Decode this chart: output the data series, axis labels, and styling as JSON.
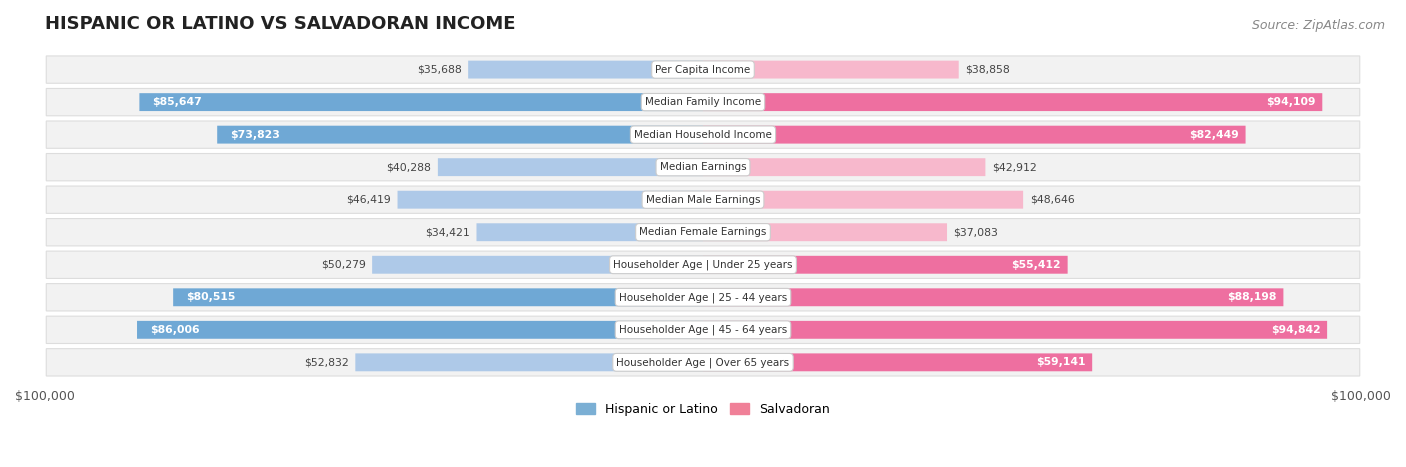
{
  "title": "HISPANIC OR LATINO VS SALVADORAN INCOME",
  "source": "Source: ZipAtlas.com",
  "categories": [
    "Per Capita Income",
    "Median Family Income",
    "Median Household Income",
    "Median Earnings",
    "Median Male Earnings",
    "Median Female Earnings",
    "Householder Age | Under 25 years",
    "Householder Age | 25 - 44 years",
    "Householder Age | 45 - 64 years",
    "Householder Age | Over 65 years"
  ],
  "hispanic_values": [
    35688,
    85647,
    73823,
    40288,
    46419,
    34421,
    50279,
    80515,
    86006,
    52832
  ],
  "salvadoran_values": [
    38858,
    94109,
    82449,
    42912,
    48646,
    37083,
    55412,
    88198,
    94842,
    59141
  ],
  "hispanic_labels": [
    "$35,688",
    "$85,647",
    "$73,823",
    "$40,288",
    "$46,419",
    "$34,421",
    "$50,279",
    "$80,515",
    "$86,006",
    "$52,832"
  ],
  "salvadoran_labels": [
    "$38,858",
    "$94,109",
    "$82,449",
    "$42,912",
    "$48,646",
    "$37,083",
    "$55,412",
    "$88,198",
    "$94,842",
    "$59,141"
  ],
  "max_value": 100000,
  "hispanic_color_light": "#aec9e8",
  "hispanic_color_dark": "#6fa8d5",
  "salvadoran_color_light": "#f7b8cc",
  "salvadoran_color_dark": "#ee6fa0",
  "row_bg_color": "#f2f2f2",
  "row_border_color": "#dddddd",
  "label_color_inside": "#ffffff",
  "label_color_outside": "#444444",
  "title_fontsize": 13,
  "source_fontsize": 9,
  "legend_color_hispanic": "#7bafd4",
  "legend_color_salvadoran": "#f08098",
  "inside_threshold": 0.55
}
